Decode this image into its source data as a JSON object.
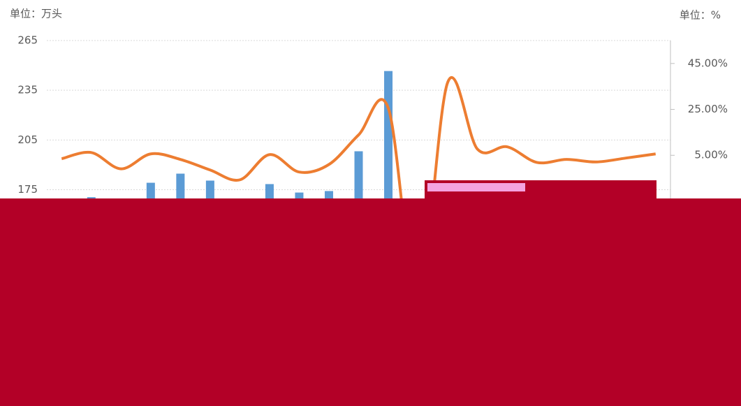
{
  "chart_data": {
    "type": "bar_line",
    "y_unit": "单位：万头",
    "y2_unit": "单位：%",
    "categories": [
      null,
      null,
      null,
      null,
      null,
      null,
      null,
      null,
      null,
      null,
      null,
      null,
      null,
      null,
      null,
      null,
      null,
      null,
      null,
      null,
      null
    ],
    "series": [
      {
        "name": null,
        "type": "bar",
        "color": "#5b9bd5",
        "values": [
          null,
          170.5,
          null,
          179.2,
          184.7,
          180.5,
          null,
          178.4,
          173.3,
          174.2,
          198.2,
          246.6,
          null,
          null,
          null,
          null,
          null,
          null,
          null,
          null,
          null
        ]
      },
      {
        "name": null,
        "type": "line",
        "axis": "y2",
        "color": "#ed7d31",
        "values": [
          3.5,
          6.2,
          -0.9,
          5.6,
          3.2,
          -1.4,
          -5.7,
          5.3,
          -2.3,
          1.0,
          13.9,
          25.5,
          -58,
          36.8,
          7.7,
          8.7,
          1.9,
          3.2,
          2.1,
          3.8,
          5.6
        ]
      }
    ],
    "ylim": [
      85,
      265
    ],
    "yticks": [
      265,
      235,
      205,
      175
    ],
    "y2lim": [
      -75,
      55
    ],
    "y2ticks": [
      {
        "value": 45,
        "label": "45.00%"
      },
      {
        "value": 25,
        "label": "25.00%"
      },
      {
        "value": 5,
        "label": "5.00%"
      }
    ],
    "grid": true
  }
}
